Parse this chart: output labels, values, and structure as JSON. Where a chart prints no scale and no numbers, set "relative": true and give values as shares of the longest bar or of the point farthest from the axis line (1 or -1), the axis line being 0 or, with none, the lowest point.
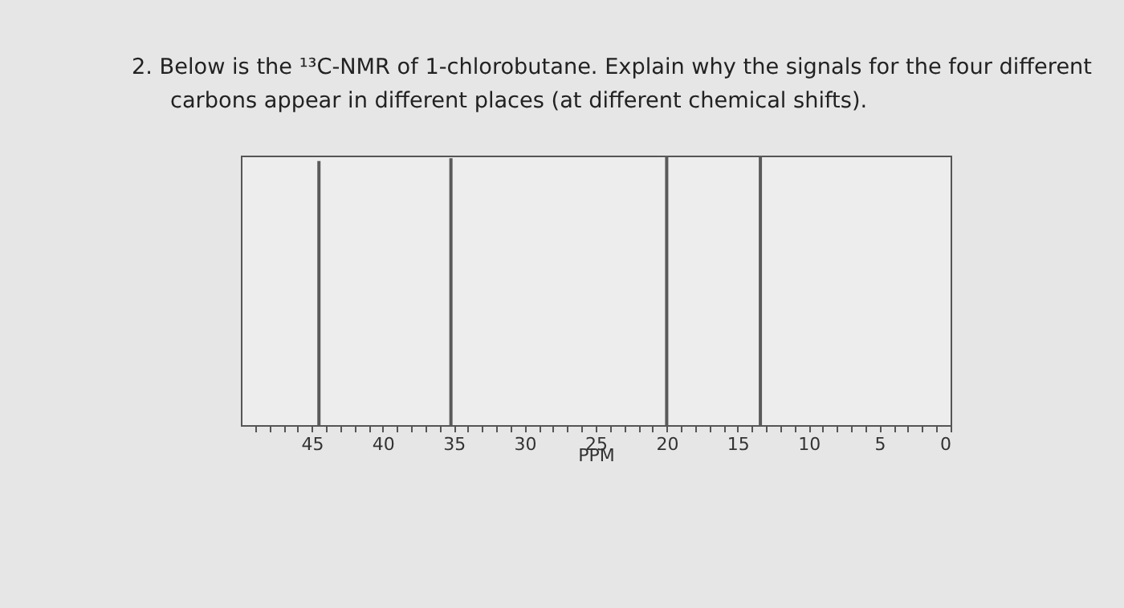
{
  "chart_data": {
    "type": "bar",
    "relative": true,
    "title": "2. Below is the ¹³C-NMR of 1-chlorobutane. Explain why the signals for the four different carbons appear in different places (at different chemical shifts).",
    "xlabel": "PPM",
    "x": [
      44.5,
      35.2,
      20.0,
      13.4
    ],
    "values": [
      0.98,
      0.99,
      1,
      1
    ],
    "color": "#5a5a5a",
    "xlim": [
      50,
      0
    ],
    "xticks": [
      45,
      40,
      35,
      30,
      25,
      20,
      15,
      10,
      5,
      0,
      {
        "value": 49,
        "label": null
      },
      {
        "value": 48,
        "label": null
      },
      {
        "value": 47,
        "label": null
      },
      {
        "value": 46,
        "label": null
      },
      {
        "value": 44,
        "label": null
      },
      {
        "value": 43,
        "label": null
      },
      {
        "value": 42,
        "label": null
      },
      {
        "value": 41,
        "label": null
      },
      {
        "value": 39,
        "label": null
      },
      {
        "value": 38,
        "label": null
      },
      {
        "value": 37,
        "label": null
      },
      {
        "value": 36,
        "label": null
      },
      {
        "value": 34,
        "label": null
      },
      {
        "value": 33,
        "label": null
      },
      {
        "value": 32,
        "label": null
      },
      {
        "value": 31,
        "label": null
      },
      {
        "value": 29,
        "label": null
      },
      {
        "value": 28,
        "label": null
      },
      {
        "value": 27,
        "label": null
      },
      {
        "value": 26,
        "label": null
      },
      {
        "value": 24,
        "label": null
      },
      {
        "value": 23,
        "label": null
      },
      {
        "value": 22,
        "label": null
      },
      {
        "value": 21,
        "label": null
      },
      {
        "value": 19,
        "label": null
      },
      {
        "value": 18,
        "label": null
      },
      {
        "value": 17,
        "label": null
      },
      {
        "value": 16,
        "label": null
      },
      {
        "value": 14,
        "label": null
      },
      {
        "value": 13,
        "label": null
      },
      {
        "value": 12,
        "label": null
      },
      {
        "value": 11,
        "label": null
      },
      {
        "value": 9,
        "label": null
      },
      {
        "value": 8,
        "label": null
      },
      {
        "value": 7,
        "label": null
      },
      {
        "value": 6,
        "label": null
      },
      {
        "value": 4,
        "label": null
      },
      {
        "value": 3,
        "label": null
      },
      {
        "value": 2,
        "label": null
      },
      {
        "value": 1,
        "label": null
      }
    ],
    "grid": false,
    "legend": false
  }
}
